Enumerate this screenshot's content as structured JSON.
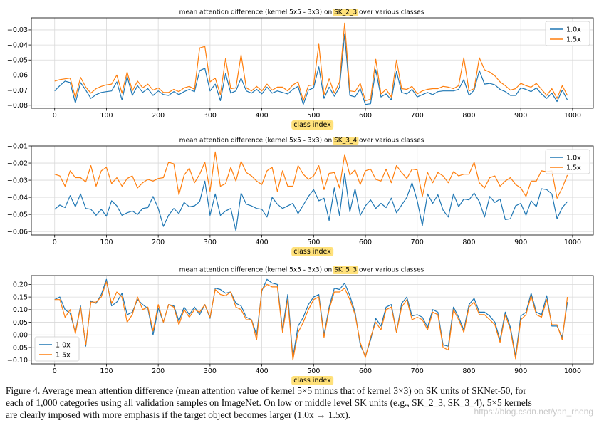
{
  "colors": {
    "series_1": "#1f77b4",
    "series_2": "#ff7f0e",
    "highlight": "#ffe17a"
  },
  "caption": {
    "lines": [
      "Figure 4. Average mean attention difference (mean attention value of kernel 5×5 minus that of kernel 3×3) on SK units of SKNet-50, for",
      "each of 1,000 categories using all validation samples on ImageNet. On low or middle level SK units (e.g., SK_2_3, SK_3_4), 5×5 kernels",
      "are clearly imposed with more emphasis if the target object becomes larger (1.0x → 1.5x)."
    ]
  },
  "watermark": "https://blog.csdn.net/yan_rheng",
  "chart_data": [
    {
      "type": "line",
      "title_prefix": "mean attention difference (kernel 5x5 - 3x3) on ",
      "title_highlight": "SK_2_3",
      "title_suffix": " over various classes",
      "xlabel": "class index",
      "xlim": [
        -45,
        1040
      ],
      "ylim": [
        -0.082,
        -0.022
      ],
      "xticks": [
        0,
        100,
        200,
        300,
        400,
        500,
        600,
        700,
        800,
        900,
        1000
      ],
      "yticks": [
        -0.08,
        -0.07,
        -0.06,
        -0.05,
        -0.04,
        -0.03
      ],
      "yticklabels": [
        "−0.08",
        "−0.07",
        "−0.06",
        "−0.05",
        "−0.04",
        "−0.03"
      ],
      "legend_loc": "top-right",
      "x": [
        0,
        10,
        20,
        30,
        40,
        50,
        60,
        70,
        80,
        90,
        100,
        110,
        120,
        130,
        140,
        150,
        160,
        170,
        180,
        190,
        200,
        210,
        220,
        230,
        240,
        250,
        260,
        270,
        280,
        290,
        300,
        310,
        320,
        330,
        340,
        350,
        360,
        370,
        380,
        390,
        400,
        410,
        420,
        430,
        440,
        450,
        460,
        470,
        480,
        490,
        500,
        510,
        520,
        530,
        540,
        550,
        560,
        570,
        580,
        590,
        600,
        610,
        620,
        630,
        640,
        650,
        660,
        670,
        680,
        690,
        700,
        710,
        720,
        730,
        740,
        750,
        760,
        770,
        780,
        790,
        800,
        810,
        820,
        830,
        840,
        850,
        860,
        870,
        880,
        890,
        900,
        910,
        920,
        930,
        940,
        950,
        960,
        970,
        980,
        990
      ],
      "series": [
        {
          "name": "1.0x",
          "values": [
            -0.0705,
            -0.067,
            -0.064,
            -0.065,
            -0.0785,
            -0.065,
            -0.07,
            -0.0755,
            -0.073,
            -0.0715,
            -0.071,
            -0.0705,
            -0.0645,
            -0.0765,
            -0.061,
            -0.0735,
            -0.067,
            -0.0715,
            -0.069,
            -0.0735,
            -0.0705,
            -0.073,
            -0.0735,
            -0.071,
            -0.073,
            -0.071,
            -0.0695,
            -0.071,
            -0.057,
            -0.0555,
            -0.0705,
            -0.066,
            -0.077,
            -0.059,
            -0.072,
            -0.0705,
            -0.062,
            -0.0705,
            -0.072,
            -0.0695,
            -0.0725,
            -0.068,
            -0.072,
            -0.0705,
            -0.0715,
            -0.0725,
            -0.0695,
            -0.0675,
            -0.0795,
            -0.07,
            -0.0685,
            -0.0545,
            -0.0755,
            -0.068,
            -0.074,
            -0.068,
            -0.033,
            -0.0735,
            -0.0745,
            -0.069,
            -0.0795,
            -0.079,
            -0.0565,
            -0.0745,
            -0.0725,
            -0.0765,
            -0.0575,
            -0.0715,
            -0.0725,
            -0.0695,
            -0.0745,
            -0.073,
            -0.0715,
            -0.073,
            -0.071,
            -0.0705,
            -0.0705,
            -0.0705,
            -0.0695,
            -0.063,
            -0.0735,
            -0.07,
            -0.057,
            -0.066,
            -0.0655,
            -0.0665,
            -0.0695,
            -0.071,
            -0.0735,
            -0.0735,
            -0.0685,
            -0.0695,
            -0.071,
            -0.0685,
            -0.0725,
            -0.0755,
            -0.072,
            -0.0775,
            -0.07,
            -0.0765
          ]
        },
        {
          "name": "1.5x",
          "values": [
            -0.064,
            -0.063,
            -0.0625,
            -0.062,
            -0.075,
            -0.0615,
            -0.068,
            -0.072,
            -0.069,
            -0.0675,
            -0.0665,
            -0.066,
            -0.06,
            -0.072,
            -0.058,
            -0.0705,
            -0.064,
            -0.0685,
            -0.066,
            -0.07,
            -0.0685,
            -0.0715,
            -0.0715,
            -0.0695,
            -0.071,
            -0.0685,
            -0.0675,
            -0.0695,
            -0.042,
            -0.041,
            -0.0645,
            -0.062,
            -0.073,
            -0.049,
            -0.069,
            -0.0685,
            -0.0465,
            -0.0685,
            -0.0705,
            -0.0675,
            -0.0705,
            -0.066,
            -0.07,
            -0.068,
            -0.068,
            -0.0705,
            -0.0665,
            -0.0645,
            -0.077,
            -0.067,
            -0.0665,
            -0.0395,
            -0.073,
            -0.0625,
            -0.072,
            -0.0645,
            -0.0255,
            -0.0705,
            -0.071,
            -0.0655,
            -0.077,
            -0.076,
            -0.0495,
            -0.0725,
            -0.0695,
            -0.0745,
            -0.05,
            -0.069,
            -0.0695,
            -0.0675,
            -0.0725,
            -0.0705,
            -0.0695,
            -0.069,
            -0.069,
            -0.0675,
            -0.068,
            -0.069,
            -0.067,
            -0.0485,
            -0.0705,
            -0.069,
            -0.0485,
            -0.0565,
            -0.058,
            -0.0605,
            -0.0645,
            -0.067,
            -0.07,
            -0.069,
            -0.0655,
            -0.067,
            -0.068,
            -0.0655,
            -0.0695,
            -0.0735,
            -0.069,
            -0.0755,
            -0.067,
            -0.0735
          ]
        }
      ]
    },
    {
      "type": "line",
      "title_prefix": "mean attention difference (kernel 5x5 - 3x3) on ",
      "title_highlight": "SK_3_4",
      "title_suffix": " over various classes",
      "xlabel": "class index",
      "xlim": [
        -45,
        1040
      ],
      "ylim": [
        -0.062,
        -0.01
      ],
      "xticks": [
        0,
        100,
        200,
        300,
        400,
        500,
        600,
        700,
        800,
        900,
        1000
      ],
      "yticks": [
        -0.06,
        -0.05,
        -0.04,
        -0.03,
        -0.02,
        -0.01
      ],
      "yticklabels": [
        "−0.06",
        "−0.05",
        "−0.04",
        "−0.03",
        "−0.02",
        "−0.01"
      ],
      "legend_loc": "top-right",
      "x": [
        0,
        10,
        20,
        30,
        40,
        50,
        60,
        70,
        80,
        90,
        100,
        110,
        120,
        130,
        140,
        150,
        160,
        170,
        180,
        190,
        200,
        210,
        220,
        230,
        240,
        250,
        260,
        270,
        280,
        290,
        300,
        310,
        320,
        330,
        340,
        350,
        360,
        370,
        380,
        390,
        400,
        410,
        420,
        430,
        440,
        450,
        460,
        470,
        480,
        490,
        500,
        510,
        520,
        530,
        540,
        550,
        560,
        570,
        580,
        590,
        600,
        610,
        620,
        630,
        640,
        650,
        660,
        670,
        680,
        690,
        700,
        710,
        720,
        730,
        740,
        750,
        760,
        770,
        780,
        790,
        800,
        810,
        820,
        830,
        840,
        850,
        860,
        870,
        880,
        890,
        900,
        910,
        920,
        930,
        940,
        950,
        960,
        970,
        980,
        990
      ],
      "series": [
        {
          "name": "1.0x",
          "values": [
            -0.047,
            -0.0445,
            -0.046,
            -0.039,
            -0.0455,
            -0.038,
            -0.0465,
            -0.047,
            -0.0505,
            -0.047,
            -0.051,
            -0.042,
            -0.045,
            -0.0505,
            -0.049,
            -0.048,
            -0.05,
            -0.0465,
            -0.046,
            -0.0395,
            -0.0465,
            -0.057,
            -0.0505,
            -0.0465,
            -0.0495,
            -0.043,
            -0.0455,
            -0.045,
            -0.0425,
            -0.0305,
            -0.0505,
            -0.038,
            -0.0505,
            -0.048,
            -0.0465,
            -0.0595,
            -0.0375,
            -0.044,
            -0.045,
            -0.0465,
            -0.047,
            -0.0515,
            -0.04,
            -0.044,
            -0.0465,
            -0.045,
            -0.0435,
            -0.0495,
            -0.0445,
            -0.0395,
            -0.0355,
            -0.042,
            -0.0405,
            -0.0535,
            -0.0345,
            -0.0505,
            -0.026,
            -0.0485,
            -0.035,
            -0.0505,
            -0.045,
            -0.0415,
            -0.0465,
            -0.0435,
            -0.046,
            -0.0405,
            -0.049,
            -0.0445,
            -0.04,
            -0.0315,
            -0.042,
            -0.0565,
            -0.038,
            -0.0435,
            -0.0385,
            -0.0475,
            -0.0515,
            -0.038,
            -0.0455,
            -0.041,
            -0.0415,
            -0.0375,
            -0.0425,
            -0.0515,
            -0.0395,
            -0.043,
            -0.041,
            -0.053,
            -0.0525,
            -0.045,
            -0.0435,
            -0.0505,
            -0.042,
            -0.0455,
            -0.035,
            -0.0355,
            -0.038,
            -0.0525,
            -0.046,
            -0.0425
          ]
        },
        {
          "name": "1.5x",
          "values": [
            -0.0265,
            -0.0275,
            -0.0335,
            -0.0245,
            -0.0285,
            -0.0285,
            -0.031,
            -0.0215,
            -0.0335,
            -0.0245,
            -0.0225,
            -0.032,
            -0.0285,
            -0.0335,
            -0.029,
            -0.0275,
            -0.0345,
            -0.0315,
            -0.0295,
            -0.0305,
            -0.029,
            -0.0285,
            -0.0195,
            -0.0205,
            -0.0385,
            -0.027,
            -0.023,
            -0.0315,
            -0.0265,
            -0.0195,
            -0.0365,
            -0.0135,
            -0.0335,
            -0.032,
            -0.0225,
            -0.0305,
            -0.019,
            -0.0255,
            -0.0275,
            -0.0305,
            -0.0325,
            -0.0245,
            -0.0225,
            -0.0365,
            -0.0245,
            -0.0335,
            -0.0335,
            -0.0215,
            -0.0265,
            -0.0295,
            -0.0275,
            -0.0215,
            -0.0355,
            -0.026,
            -0.0255,
            -0.0345,
            -0.015,
            -0.027,
            -0.024,
            -0.0325,
            -0.0245,
            -0.0235,
            -0.0295,
            -0.0305,
            -0.0235,
            -0.0315,
            -0.0215,
            -0.0255,
            -0.029,
            -0.0235,
            -0.024,
            -0.0395,
            -0.0255,
            -0.0315,
            -0.0255,
            -0.0275,
            -0.0315,
            -0.025,
            -0.0275,
            -0.0265,
            -0.0265,
            -0.0195,
            -0.0315,
            -0.0345,
            -0.0285,
            -0.0275,
            -0.0335,
            -0.0305,
            -0.0285,
            -0.0325,
            -0.0345,
            -0.0395,
            -0.0305,
            -0.0305,
            -0.0245,
            -0.025,
            -0.0245,
            -0.0405,
            -0.0345,
            -0.027
          ]
        }
      ]
    },
    {
      "type": "line",
      "title_prefix": "mean attention difference (kernel 5x5 - 3x3) on ",
      "title_highlight": "SK_5_3",
      "title_suffix": " over various classes",
      "xlabel": "class index",
      "xlim": [
        -45,
        1040
      ],
      "ylim": [
        -0.115,
        0.235
      ],
      "xticks": [
        0,
        100,
        200,
        300,
        400,
        500,
        600,
        700,
        800,
        900,
        1000
      ],
      "yticks": [
        -0.1,
        -0.05,
        0.0,
        0.05,
        0.1,
        0.15,
        0.2
      ],
      "yticklabels": [
        "−0.10",
        "−0.05",
        "0.00",
        "0.05",
        "0.10",
        "0.15",
        "0.20"
      ],
      "legend_loc": "bottom-left",
      "x": [
        0,
        10,
        20,
        30,
        40,
        50,
        60,
        70,
        80,
        90,
        100,
        110,
        120,
        130,
        140,
        150,
        160,
        170,
        180,
        190,
        200,
        210,
        220,
        230,
        240,
        250,
        260,
        270,
        280,
        290,
        300,
        310,
        320,
        330,
        340,
        350,
        360,
        370,
        380,
        390,
        400,
        410,
        420,
        430,
        440,
        450,
        460,
        470,
        480,
        490,
        500,
        510,
        520,
        530,
        540,
        550,
        560,
        570,
        580,
        590,
        600,
        610,
        620,
        630,
        640,
        650,
        660,
        670,
        680,
        690,
        700,
        710,
        720,
        730,
        740,
        750,
        760,
        770,
        780,
        790,
        800,
        810,
        820,
        830,
        840,
        850,
        860,
        870,
        880,
        890,
        900,
        910,
        920,
        930,
        940,
        950,
        960,
        970,
        980,
        990
      ],
      "series": [
        {
          "name": "1.0x",
          "values": [
            0.14,
            0.15,
            0.1,
            0.085,
            0.01,
            0.115,
            -0.045,
            0.135,
            0.125,
            0.16,
            0.22,
            0.115,
            0.13,
            0.165,
            0.08,
            0.09,
            0.14,
            0.12,
            0.105,
            0.0,
            0.105,
            0.05,
            0.12,
            0.115,
            0.055,
            0.11,
            0.08,
            0.11,
            0.08,
            0.12,
            0.065,
            0.185,
            0.18,
            0.165,
            0.17,
            0.125,
            0.115,
            0.07,
            0.06,
            0.0,
            0.175,
            0.22,
            0.205,
            0.2,
            0.02,
            0.16,
            -0.09,
            0.035,
            0.07,
            0.12,
            0.15,
            0.16,
            0.0,
            0.11,
            0.185,
            0.18,
            0.205,
            0.155,
            0.09,
            -0.04,
            -0.085,
            -0.02,
            0.065,
            0.035,
            0.11,
            0.12,
            0.01,
            0.125,
            0.15,
            0.075,
            0.08,
            0.07,
            0.03,
            0.1,
            0.09,
            -0.04,
            -0.045,
            0.11,
            0.07,
            0.02,
            0.12,
            0.145,
            0.09,
            0.09,
            0.075,
            0.05,
            -0.02,
            0.09,
            0.03,
            -0.085,
            0.075,
            0.09,
            0.165,
            0.09,
            0.08,
            0.155,
            0.035,
            0.035,
            -0.01,
            0.13
          ]
        },
        {
          "name": "1.5x",
          "values": [
            0.14,
            0.14,
            0.07,
            0.1,
            0.005,
            0.11,
            -0.04,
            0.13,
            0.13,
            0.15,
            0.21,
            0.125,
            0.17,
            0.15,
            0.05,
            0.08,
            0.15,
            0.1,
            0.11,
            0.015,
            0.12,
            0.05,
            0.12,
            0.11,
            0.04,
            0.1,
            0.07,
            0.1,
            0.09,
            0.12,
            0.07,
            0.18,
            0.16,
            0.155,
            0.17,
            0.11,
            0.1,
            0.06,
            0.06,
            -0.02,
            0.18,
            0.2,
            0.19,
            0.19,
            0.01,
            0.14,
            -0.1,
            0.01,
            0.05,
            0.1,
            0.14,
            0.15,
            -0.01,
            0.1,
            0.17,
            0.17,
            0.185,
            0.14,
            0.08,
            -0.03,
            -0.09,
            -0.01,
            0.05,
            0.02,
            0.1,
            0.11,
            0.01,
            0.11,
            0.14,
            0.06,
            0.07,
            0.06,
            0.02,
            0.09,
            0.08,
            -0.05,
            -0.06,
            0.1,
            0.06,
            0.01,
            0.11,
            0.13,
            0.08,
            0.08,
            0.06,
            0.04,
            -0.03,
            0.08,
            0.02,
            -0.095,
            0.06,
            0.08,
            0.155,
            0.08,
            0.07,
            0.14,
            0.04,
            0.04,
            -0.02,
            0.15
          ]
        }
      ]
    }
  ]
}
